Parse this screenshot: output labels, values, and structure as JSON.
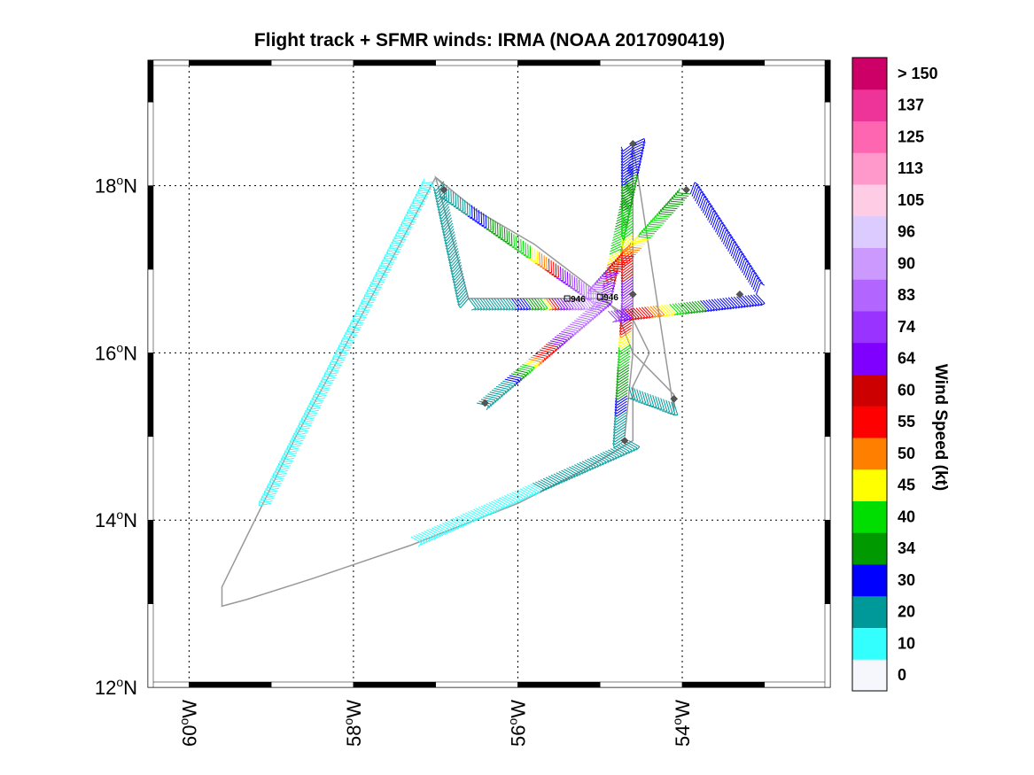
{
  "chart_data": {
    "type": "scatter",
    "title": "Flight track + SFMR winds: IRMA (NOAA 2017090419)",
    "xlim": [
      -60.5,
      -52.2
    ],
    "ylim": [
      12.0,
      19.5
    ],
    "x_ticks": [
      -60,
      -58,
      -56,
      -54
    ],
    "x_tick_labels": [
      "60",
      "58",
      "56",
      "54"
    ],
    "x_tick_suffix": "W",
    "y_ticks": [
      12,
      14,
      16,
      18
    ],
    "y_tick_labels": [
      "12",
      "14",
      "16",
      "18"
    ],
    "y_tick_suffix": "N",
    "degree_symbol": "o",
    "grid": true,
    "colorbar": {
      "title": "Wind Speed (kt)",
      "levels": [
        "0",
        "10",
        "20",
        "30",
        "34",
        "40",
        "45",
        "50",
        "55",
        "60",
        "64",
        "74",
        "83",
        "90",
        "96",
        "105",
        "113",
        "125",
        "137",
        "> 150"
      ],
      "colors": [
        "#f5f7fd",
        "#33ffff",
        "#00999a",
        "#0000ff",
        "#009900",
        "#00dd00",
        "#ffff00",
        "#ff8000",
        "#ff0000",
        "#cc0000",
        "#8000ff",
        "#9933ff",
        "#b266ff",
        "#cc99ff",
        "#dccbff",
        "#ffcce6",
        "#ff99cc",
        "#ff66b2",
        "#ee3399",
        "#cc0066"
      ]
    },
    "track": [
      [
        -56.9,
        18.0
      ],
      [
        -57.0,
        18.1
      ],
      [
        -57.6,
        17.0
      ],
      [
        -58.2,
        15.9
      ],
      [
        -58.7,
        15.0
      ],
      [
        -59.1,
        14.2
      ],
      [
        -59.4,
        13.6
      ],
      [
        -59.6,
        13.2
      ],
      [
        -59.6,
        12.97
      ],
      [
        -59.3,
        13.05
      ],
      [
        -58.5,
        13.3
      ],
      [
        -57.3,
        13.7
      ],
      [
        -56.0,
        14.2
      ],
      [
        -55.2,
        14.6
      ],
      [
        -54.6,
        14.95
      ],
      [
        -54.6,
        15.6
      ],
      [
        -54.4,
        16.0
      ],
      [
        -54.6,
        16.4
      ],
      [
        -55.0,
        16.65
      ],
      [
        -55.6,
        16.65
      ],
      [
        -56.6,
        16.65
      ],
      [
        -57.0,
        18.1
      ],
      [
        -56.5,
        17.7
      ],
      [
        -55.8,
        17.3
      ],
      [
        -55.0,
        16.7
      ],
      [
        -54.8,
        16.5
      ],
      [
        -54.6,
        16.0
      ],
      [
        -54.3,
        15.7
      ],
      [
        -54.1,
        15.5
      ],
      [
        -54.1,
        15.3
      ],
      [
        -54.6,
        18.5
      ],
      [
        -54.6,
        17.5
      ],
      [
        -54.6,
        16.7
      ],
      [
        -54.6,
        16.0
      ],
      [
        -54.7,
        15.0
      ]
    ],
    "wind_legs": [
      {
        "from": [
          -56.5,
          15.4
        ],
        "to": [
          -55.0,
          16.65
        ],
        "values": [
          20,
          25,
          30,
          40,
          55,
          60,
          80,
          90,
          85,
          70
        ]
      },
      {
        "from": [
          -55.0,
          16.65
        ],
        "to": [
          -54.6,
          18.5
        ],
        "values": [
          80,
          60,
          50,
          40,
          40,
          38,
          36,
          34,
          32,
          30
        ]
      },
      {
        "from": [
          -54.6,
          18.5
        ],
        "to": [
          -54.6,
          16.6
        ],
        "values": [
          30,
          32,
          34,
          38,
          42,
          45,
          55,
          60,
          70,
          80
        ]
      },
      {
        "from": [
          -54.6,
          16.6
        ],
        "to": [
          -54.7,
          14.95
        ],
        "values": [
          80,
          65,
          50,
          42,
          40,
          36,
          34,
          30,
          25,
          20
        ]
      },
      {
        "from": [
          -56.6,
          16.65
        ],
        "to": [
          -55.1,
          16.65
        ],
        "values": [
          20,
          22,
          25,
          30,
          34,
          40,
          60,
          80,
          90,
          95
        ]
      },
      {
        "from": [
          -54.9,
          16.5
        ],
        "to": [
          -53.1,
          16.7
        ],
        "values": [
          80,
          64,
          58,
          50,
          42,
          36,
          32,
          30,
          30,
          30
        ]
      },
      {
        "from": [
          -53.1,
          16.7
        ],
        "to": [
          -53.9,
          17.9
        ],
        "values": [
          30,
          30,
          30,
          30,
          31,
          32,
          31,
          30,
          30,
          30
        ]
      },
      {
        "from": [
          -53.9,
          17.9
        ],
        "to": [
          -55.0,
          16.7
        ],
        "values": [
          34,
          36,
          40,
          42,
          45,
          52,
          58,
          64,
          80,
          90
        ]
      },
      {
        "from": [
          -56.9,
          18.0
        ],
        "to": [
          -55.0,
          16.7
        ],
        "values": [
          20,
          28,
          32,
          36,
          40,
          45,
          55,
          70,
          85,
          95
        ]
      },
      {
        "from": [
          -56.9,
          18.05
        ],
        "to": [
          -56.6,
          16.65
        ],
        "values": [
          22,
          24,
          25,
          26,
          25,
          24,
          23,
          22,
          22,
          21
        ]
      },
      {
        "from": [
          -57.0,
          18.05
        ],
        "to": [
          -59.0,
          14.2
        ],
        "values": [
          18,
          16,
          15,
          14,
          13,
          12,
          12,
          11,
          11,
          10
        ]
      },
      {
        "from": [
          -57.3,
          13.8
        ],
        "to": [
          -54.65,
          14.95
        ],
        "values": [
          12,
          14,
          15,
          16,
          18,
          20,
          22,
          24,
          25,
          25
        ]
      },
      {
        "from": [
          -54.65,
          15.6
        ],
        "to": [
          -54.1,
          15.4
        ],
        "values": [
          22,
          24,
          25,
          26,
          25,
          24,
          23,
          22,
          22,
          22
        ]
      }
    ],
    "markers": [
      [
        -56.9,
        17.95
      ],
      [
        -56.4,
        15.4
      ],
      [
        -54.6,
        18.5
      ],
      [
        -53.95,
        17.95
      ],
      [
        -53.3,
        16.7
      ],
      [
        -54.1,
        15.45
      ],
      [
        -54.7,
        14.95
      ],
      [
        -54.6,
        16.7
      ]
    ],
    "annotations": [
      {
        "text": "946",
        "x": -55.4,
        "y": 16.65
      },
      {
        "text": "946",
        "x": -55.0,
        "y": 16.67
      }
    ]
  }
}
